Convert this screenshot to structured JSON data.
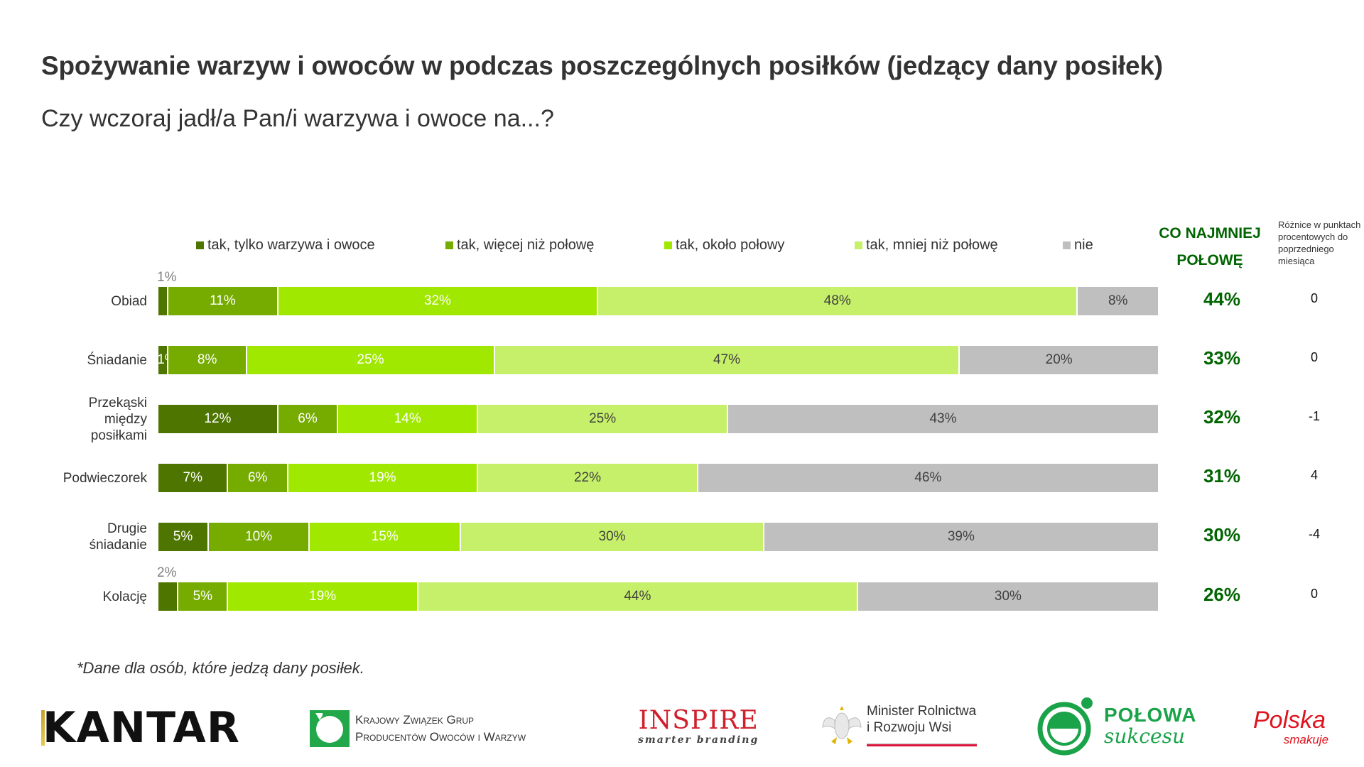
{
  "header": {
    "title": "Spożywanie warzyw i owoców w podczas poszczególnych posiłków (jedzący dany posiłek)",
    "subtitle": "Czy wczoraj jadł/a Pan/i warzywa i owoce na...?"
  },
  "columns": {
    "at_least_half_line1": "CO NAJMNIEJ",
    "at_least_half_line2": "POŁOWĘ",
    "diff_header": "Różnice w punktach procentowych do poprzedniego miesiąca"
  },
  "chart_data": {
    "type": "bar",
    "orientation": "horizontal",
    "stacked": true,
    "normalized": true,
    "title": "Spożywanie warzyw i owoców w podczas poszczególnych posiłków (jedzący dany posiłek)",
    "subtitle": "Czy wczoraj jadł/a Pan/i warzywa i owoce na...?",
    "xlabel": "",
    "ylabel": "",
    "xlim": [
      0,
      100
    ],
    "grid": false,
    "legend_position": "top",
    "categories": [
      "Obiad",
      "Śniadanie",
      "Przekąski między posiłkami",
      "Podwieczorek",
      "Drugie śniadanie",
      "Kolację"
    ],
    "category_labels": [
      [
        "Obiad"
      ],
      [
        "Śniadanie"
      ],
      [
        "Przekąski",
        "między",
        "posiłkami"
      ],
      [
        "Podwieczorek"
      ],
      [
        "Drugie",
        "śniadanie"
      ],
      [
        "Kolację"
      ]
    ],
    "series": [
      {
        "name": "tak, tylko warzywa i owoce",
        "color": "#4E7500",
        "text_color": "#ffffff",
        "values": [
          1,
          1,
          12,
          7,
          5,
          2
        ]
      },
      {
        "name": "tak, więcej niż połowę",
        "color": "#76AB00",
        "text_color": "#ffffff",
        "values": [
          11,
          8,
          6,
          6,
          10,
          5
        ]
      },
      {
        "name": "tak, około połowy",
        "color": "#A0E800",
        "text_color": "#ffffff",
        "values": [
          32,
          25,
          14,
          19,
          15,
          19
        ]
      },
      {
        "name": "tak, mniej niż połowę",
        "color": "#C6F06A",
        "text_color": "#404040",
        "values": [
          48,
          47,
          25,
          22,
          30,
          44
        ]
      },
      {
        "name": "nie",
        "color": "#BFBFBF",
        "text_color": "#404040",
        "values": [
          8,
          20,
          43,
          46,
          39,
          30
        ]
      }
    ],
    "data_labels": [
      [
        "1%",
        "11%",
        "32%",
        "48%",
        "8%"
      ],
      [
        "1%",
        "8%",
        "25%",
        "47%",
        "20%"
      ],
      [
        "12%",
        "6%",
        "14%",
        "25%",
        "43%"
      ],
      [
        "7%",
        "6%",
        "19%",
        "22%",
        "46%"
      ],
      [
        "5%",
        "10%",
        "15%",
        "30%",
        "39%"
      ],
      [
        "2%",
        "5%",
        "19%",
        "44%",
        "30%"
      ]
    ],
    "outside_labels": [
      {
        "row": 0,
        "series": 0,
        "text": "1%"
      },
      {
        "row": 5,
        "series": 0,
        "text": "2%"
      }
    ],
    "at_least_half": [
      "44%",
      "33%",
      "32%",
      "31%",
      "30%",
      "26%"
    ],
    "diff_vs_previous_month": [
      "0",
      "0",
      "-1",
      "4",
      "-4",
      "0"
    ]
  },
  "footnote": "*Dane dla osób, które jedzą dany posiłek.",
  "logos": {
    "kantar": "KANTAR",
    "kzgppow_line1": "Krajowy Związek Grup",
    "kzgppow_line2": "Producentów Owoców i Warzyw",
    "inspire": "INSPIRE",
    "inspire_tagline": "smarter branding",
    "ministry_line1": "Minister Rolnictwa",
    "ministry_line2": "i Rozwoju Wsi",
    "polowa_line1": "POŁOWA",
    "polowa_line2": "sukcesu",
    "polska_line1": "Polska",
    "polska_line2": "smakuje"
  }
}
